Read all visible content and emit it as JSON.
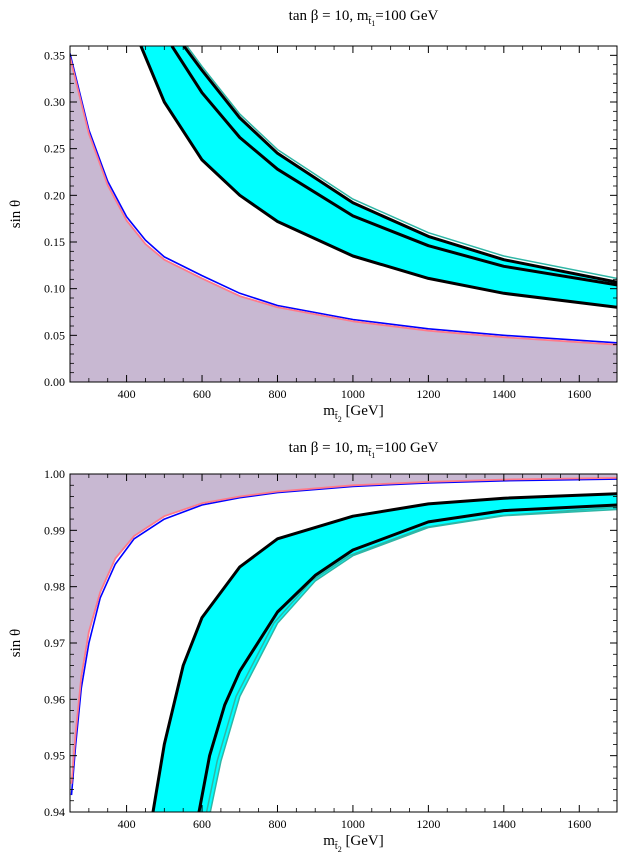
{
  "chart_data": [
    {
      "type": "area",
      "title": "tan β = 10, m",
      "title_sub": "t̃",
      "title_subsub": "1",
      "title_tail": "=100 GeV",
      "xlabel": "m",
      "xlabel_sub": "t̃",
      "xlabel_subsub": "2",
      "xlabel_tail": " [GeV]",
      "ylabel": "sin θ",
      "xlim": [
        250,
        1700
      ],
      "ylim": [
        0,
        0.36
      ],
      "xticks": [
        "400",
        "600",
        "800",
        "1000",
        "1200",
        "1400",
        "1600"
      ],
      "yticks": [
        "0.00",
        "0.05",
        "0.10",
        "0.15",
        "0.20",
        "0.25",
        "0.30",
        "0.35"
      ],
      "colors": {
        "shaded": "#c8b8d2",
        "blue": "#0000ff",
        "pink": "#ff7a8a",
        "cyan": "#00ffff",
        "teal": "#2fb6a6",
        "black": "#000000"
      },
      "series": [
        {
          "role": "excluded-region-boundary-blue",
          "x": [
            250,
            300,
            350,
            400,
            450,
            500,
            600,
            700,
            800,
            1000,
            1200,
            1400,
            1700
          ],
          "y": [
            0.352,
            0.27,
            0.215,
            0.177,
            0.152,
            0.134,
            0.114,
            0.095,
            0.082,
            0.067,
            0.057,
            0.05,
            0.042
          ]
        },
        {
          "role": "excluded-region-boundary-pink",
          "x": [
            250,
            300,
            350,
            400,
            450,
            500,
            600,
            700,
            800,
            1000,
            1200,
            1400,
            1700
          ],
          "y": [
            0.348,
            0.266,
            0.211,
            0.173,
            0.148,
            0.131,
            0.111,
            0.092,
            0.08,
            0.065,
            0.055,
            0.048,
            0.04
          ]
        },
        {
          "role": "band-upper-outer",
          "x": [
            552,
            600,
            700,
            800,
            1000,
            1200,
            1400,
            1700
          ],
          "y": [
            0.36,
            0.334,
            0.283,
            0.245,
            0.192,
            0.156,
            0.131,
            0.107
          ]
        },
        {
          "role": "band-teal-upper",
          "x": [
            560,
            600,
            700,
            800,
            1000,
            1200,
            1400,
            1700
          ],
          "y": [
            0.36,
            0.338,
            0.287,
            0.249,
            0.196,
            0.16,
            0.135,
            0.111
          ]
        },
        {
          "role": "band-middle",
          "x": [
            520,
            600,
            700,
            800,
            1000,
            1200,
            1400,
            1700
          ],
          "y": [
            0.36,
            0.31,
            0.262,
            0.228,
            0.178,
            0.146,
            0.124,
            0.104
          ]
        },
        {
          "role": "band-lower",
          "x": [
            438,
            500,
            600,
            700,
            800,
            1000,
            1200,
            1400,
            1700
          ],
          "y": [
            0.36,
            0.3,
            0.238,
            0.2,
            0.172,
            0.135,
            0.111,
            0.095,
            0.08
          ]
        }
      ]
    },
    {
      "type": "area",
      "title": "tan β = 10, m",
      "title_sub": "t̃",
      "title_subsub": "1",
      "title_tail": "=100 GeV",
      "xlabel": "m",
      "xlabel_sub": "t̃",
      "xlabel_subsub": "2",
      "xlabel_tail": " [GeV]",
      "ylabel": "sin θ",
      "xlim": [
        250,
        1700
      ],
      "ylim": [
        0.94,
        1.0
      ],
      "xticks": [
        "400",
        "600",
        "800",
        "1000",
        "1200",
        "1400",
        "1600"
      ],
      "yticks": [
        "0.94",
        "0.95",
        "0.96",
        "0.97",
        "0.98",
        "0.99",
        "1.00"
      ],
      "colors": {
        "shaded": "#c8b8d2",
        "blue": "#0000ff",
        "pink": "#ff7a8a",
        "cyan": "#00ffff",
        "teal": "#2fb6a6",
        "black": "#000000"
      },
      "series": [
        {
          "role": "excluded-region-boundary-blue",
          "x": [
            254,
            265,
            280,
            300,
            330,
            370,
            420,
            500,
            600,
            700,
            800,
            1000,
            1200,
            1400,
            1700
          ],
          "y": [
            0.943,
            0.952,
            0.962,
            0.97,
            0.978,
            0.984,
            0.9885,
            0.992,
            0.9945,
            0.9958,
            0.9967,
            0.9978,
            0.9984,
            0.9988,
            0.9991
          ]
        },
        {
          "role": "excluded-region-boundary-pink",
          "x": [
            254,
            265,
            280,
            300,
            330,
            370,
            420,
            500,
            600,
            700,
            800,
            1000,
            1200,
            1400,
            1700
          ],
          "y": [
            0.945,
            0.954,
            0.964,
            0.972,
            0.979,
            0.985,
            0.989,
            0.9925,
            0.9948,
            0.996,
            0.9969,
            0.998,
            0.9986,
            0.999,
            0.9993
          ]
        },
        {
          "role": "band-lower-outer",
          "x": [
            622,
            650,
            700,
            800,
            900,
            1000,
            1200,
            1400,
            1700
          ],
          "y": [
            0.94,
            0.949,
            0.9605,
            0.9735,
            0.981,
            0.9855,
            0.9905,
            0.9926,
            0.9937
          ]
        },
        {
          "role": "band-teal-lower",
          "x": [
            612,
            640,
            690,
            790,
            890,
            990,
            1190,
            1390,
            1700
          ],
          "y": [
            0.94,
            0.949,
            0.9605,
            0.9735,
            0.981,
            0.9855,
            0.9905,
            0.9926,
            0.9941
          ]
        },
        {
          "role": "band-middle",
          "x": [
            592,
            620,
            660,
            700,
            800,
            900,
            1000,
            1200,
            1400,
            1700
          ],
          "y": [
            0.94,
            0.95,
            0.959,
            0.965,
            0.9755,
            0.982,
            0.9865,
            0.9915,
            0.9935,
            0.9945
          ]
        },
        {
          "role": "band-upper",
          "x": [
            470,
            500,
            550,
            600,
            700,
            800,
            1000,
            1200,
            1400,
            1700
          ],
          "y": [
            0.94,
            0.952,
            0.966,
            0.9745,
            0.9835,
            0.9885,
            0.9925,
            0.9947,
            0.9957,
            0.9965
          ]
        }
      ]
    }
  ]
}
